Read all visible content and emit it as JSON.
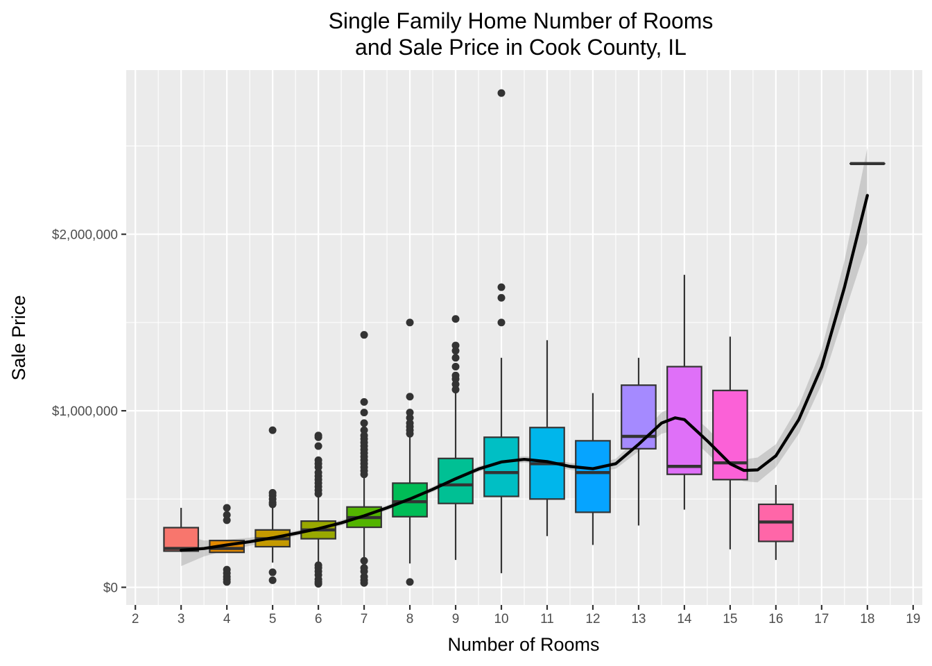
{
  "chart_data": {
    "type": "boxplot",
    "title": [
      "Single Family Home Number of Rooms",
      "and Sale Price in Cook County, IL"
    ],
    "xlabel": "Number of Rooms",
    "ylabel": "Sale Price",
    "xlim": [
      1.8,
      19.2
    ],
    "ylim": [
      -100000,
      2930000
    ],
    "x_ticks": [
      2,
      3,
      4,
      5,
      6,
      7,
      8,
      9,
      10,
      11,
      12,
      13,
      14,
      15,
      16,
      17,
      18,
      19
    ],
    "x_tick_labels": [
      "2",
      "3",
      "4",
      "5",
      "6",
      "7",
      "8",
      "9",
      "10",
      "11",
      "12",
      "13",
      "14",
      "15",
      "16",
      "17",
      "18",
      "19"
    ],
    "y_ticks": [
      0,
      1000000,
      2000000
    ],
    "y_tick_labels": [
      "$0",
      "$1,000,000",
      "$2,000,000"
    ],
    "y_minor_ticks": [
      500000,
      1500000,
      2500000
    ],
    "grid": true,
    "legend": "none",
    "colors": {
      "panel": "#EBEBEB",
      "grid": "#FFFFFF",
      "box_outline": "#333333",
      "smooth_line": "#000000",
      "ribbon": "#999999"
    },
    "boxes": [
      {
        "rooms": 3,
        "q1": 205000,
        "median": 220000,
        "q3": 338000,
        "lower_whisker": 200000,
        "upper_whisker": 450000,
        "outliers": [],
        "color": "#F8766D"
      },
      {
        "rooms": 4,
        "q1": 198000,
        "median": 220000,
        "q3": 265000,
        "lower_whisker": 198000,
        "upper_whisker": 265000,
        "outliers": [
          30000,
          45000,
          60000,
          80000,
          100000,
          380000,
          410000,
          450000
        ],
        "color": "#E38900"
      },
      {
        "rooms": 5,
        "q1": 230000,
        "median": 275000,
        "q3": 325000,
        "lower_whisker": 140000,
        "upper_whisker": 460000,
        "outliers": [
          40000,
          85000,
          470000,
          480000,
          500000,
          520000,
          535000,
          890000
        ],
        "color": "#C49A00"
      },
      {
        "rooms": 6,
        "q1": 275000,
        "median": 325000,
        "q3": 375000,
        "lower_whisker": 135000,
        "upper_whisker": 510000,
        "outliers": [
          20000,
          30000,
          45000,
          70000,
          90000,
          110000,
          125000,
          530000,
          550000,
          570000,
          590000,
          610000,
          630000,
          650000,
          680000,
          700000,
          720000,
          800000,
          850000,
          860000
        ],
        "color": "#99A800"
      },
      {
        "rooms": 7,
        "q1": 340000,
        "median": 395000,
        "q3": 455000,
        "lower_whisker": 170000,
        "upper_whisker": 620000,
        "outliers": [
          25000,
          40000,
          60000,
          90000,
          110000,
          150000,
          640000,
          660000,
          680000,
          700000,
          720000,
          740000,
          760000,
          780000,
          800000,
          820000,
          840000,
          860000,
          890000,
          930000,
          990000,
          1050000,
          1430000
        ],
        "color": "#53B400"
      },
      {
        "rooms": 8,
        "q1": 400000,
        "median": 485000,
        "q3": 590000,
        "lower_whisker": 135000,
        "upper_whisker": 850000,
        "outliers": [
          30000,
          870000,
          890000,
          910000,
          930000,
          960000,
          990000,
          1080000,
          1500000
        ],
        "color": "#00BC56"
      },
      {
        "rooms": 9,
        "q1": 475000,
        "median": 580000,
        "q3": 730000,
        "lower_whisker": 155000,
        "upper_whisker": 1100000,
        "outliers": [
          1120000,
          1150000,
          1180000,
          1200000,
          1250000,
          1300000,
          1340000,
          1370000,
          1520000
        ],
        "color": "#00C094"
      },
      {
        "rooms": 10,
        "q1": 515000,
        "median": 650000,
        "q3": 850000,
        "lower_whisker": 80000,
        "upper_whisker": 1300000,
        "outliers": [
          1500000,
          1640000,
          1700000,
          2800000
        ],
        "color": "#00BFC4"
      },
      {
        "rooms": 11,
        "q1": 500000,
        "median": 700000,
        "q3": 905000,
        "lower_whisker": 290000,
        "upper_whisker": 1400000,
        "outliers": [],
        "color": "#00B6EB"
      },
      {
        "rooms": 12,
        "q1": 425000,
        "median": 650000,
        "q3": 830000,
        "lower_whisker": 240000,
        "upper_whisker": 1100000,
        "outliers": [],
        "color": "#06A4FF"
      },
      {
        "rooms": 13,
        "q1": 785000,
        "median": 855000,
        "q3": 1145000,
        "lower_whisker": 350000,
        "upper_whisker": 1300000,
        "outliers": [],
        "color": "#A58AFF"
      },
      {
        "rooms": 14,
        "q1": 640000,
        "median": 685000,
        "q3": 1250000,
        "lower_whisker": 440000,
        "upper_whisker": 1770000,
        "outliers": [],
        "color": "#DF70F8"
      },
      {
        "rooms": 15,
        "q1": 610000,
        "median": 705000,
        "q3": 1115000,
        "lower_whisker": 215000,
        "upper_whisker": 1420000,
        "outliers": [],
        "color": "#FB61D7"
      },
      {
        "rooms": 16,
        "q1": 260000,
        "median": 370000,
        "q3": 470000,
        "lower_whisker": 155000,
        "upper_whisker": 580000,
        "outliers": [],
        "color": "#FF66A8"
      },
      {
        "rooms": 18,
        "q1": 2400000,
        "median": 2400000,
        "q3": 2400000,
        "lower_whisker": 2400000,
        "upper_whisker": 2400000,
        "outliers": [],
        "color": "#FF6C91"
      }
    ],
    "smooth": {
      "x": [
        3,
        3.5,
        4,
        4.5,
        5,
        5.5,
        6,
        6.5,
        7,
        7.5,
        8,
        8.5,
        9,
        9.5,
        10,
        10.5,
        11,
        11.5,
        12,
        12.5,
        13,
        13.5,
        13.8,
        14,
        14.5,
        15,
        15.3,
        15.6,
        16,
        16.5,
        17,
        17.5,
        18
      ],
      "y": [
        210000,
        220000,
        240000,
        258000,
        280000,
        305000,
        332000,
        365000,
        405000,
        450000,
        500000,
        555000,
        615000,
        670000,
        710000,
        725000,
        712000,
        685000,
        672000,
        700000,
        810000,
        930000,
        960000,
        950000,
        830000,
        700000,
        662000,
        665000,
        745000,
        950000,
        1250000,
        1700000,
        2220000
      ],
      "lower": [
        120000,
        175000,
        210000,
        235000,
        262000,
        290000,
        318000,
        350000,
        390000,
        436000,
        486000,
        540000,
        600000,
        655000,
        693000,
        707000,
        693000,
        665000,
        650000,
        672000,
        770000,
        870000,
        890000,
        880000,
        760000,
        635000,
        600000,
        595000,
        680000,
        870000,
        1150000,
        1550000,
        1950000
      ],
      "upper": [
        300000,
        265000,
        270000,
        281000,
        298000,
        320000,
        346000,
        380000,
        420000,
        464000,
        514000,
        570000,
        630000,
        685000,
        727000,
        743000,
        731000,
        705000,
        694000,
        728000,
        850000,
        990000,
        1030000,
        1020000,
        900000,
        765000,
        724000,
        735000,
        810000,
        1030000,
        1350000,
        1850000,
        2490000
      ]
    }
  }
}
